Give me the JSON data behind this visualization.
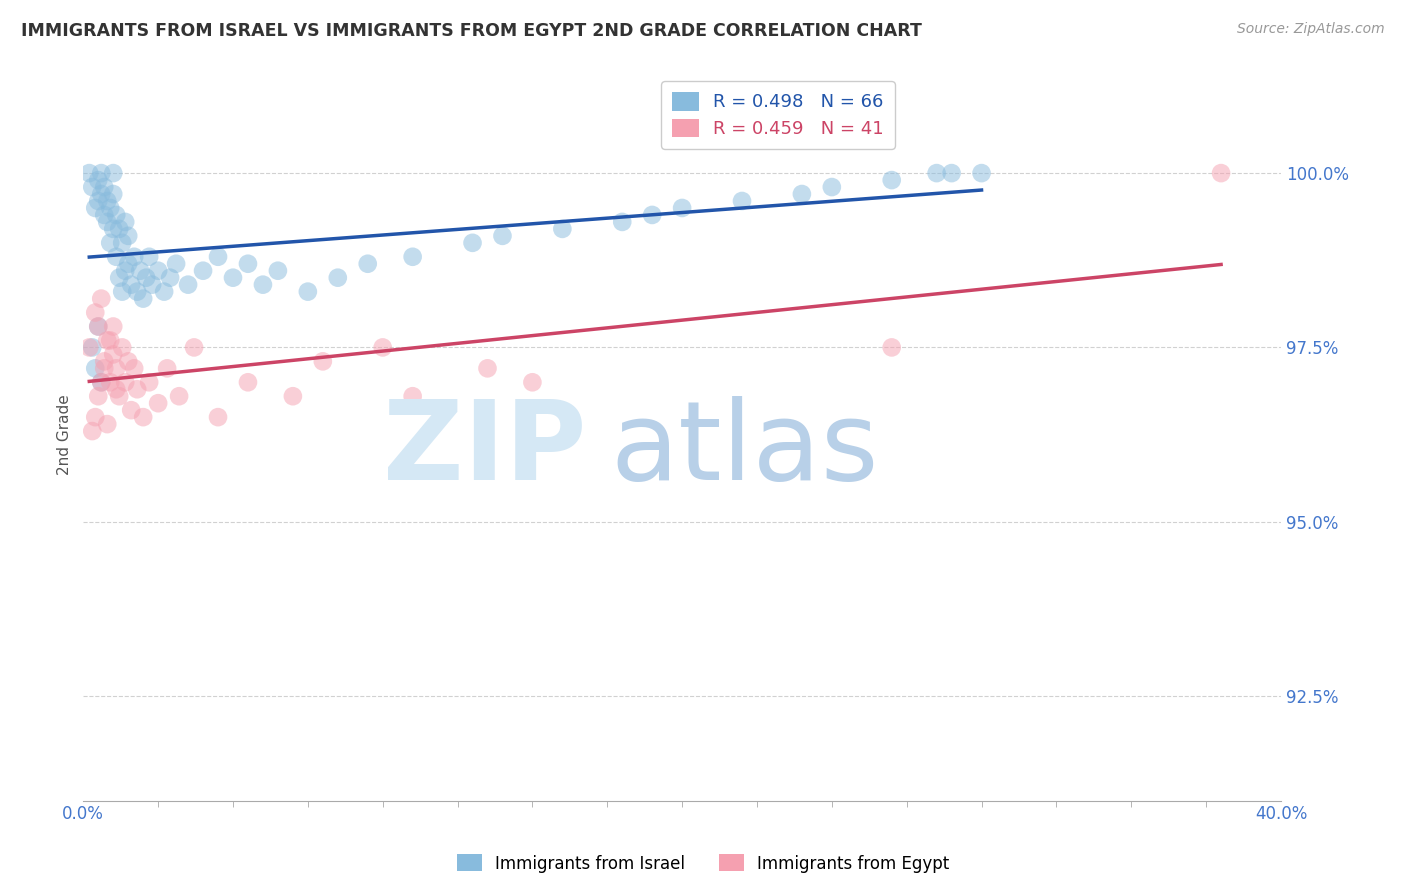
{
  "title": "IMMIGRANTS FROM ISRAEL VS IMMIGRANTS FROM EGYPT 2ND GRADE CORRELATION CHART",
  "source": "Source: ZipAtlas.com",
  "ylabel": "2nd Grade",
  "yticks": [
    92.5,
    95.0,
    97.5,
    100.0
  ],
  "ytick_labels": [
    "92.5%",
    "95.0%",
    "97.5%",
    "100.0%"
  ],
  "xlim": [
    0.0,
    40.0
  ],
  "ylim": [
    91.0,
    101.5
  ],
  "israel_color": "#88bbdd",
  "egypt_color": "#f5a0b0",
  "israel_line_color": "#2255aa",
  "egypt_line_color": "#cc4466",
  "israel_R": 0.498,
  "israel_N": 66,
  "egypt_R": 0.459,
  "egypt_N": 41,
  "watermark_zip_color": "#d5e8f5",
  "watermark_atlas_color": "#b8d0e8",
  "grid_color": "#cccccc",
  "tick_color": "#4477cc",
  "israel_x": [
    0.2,
    0.3,
    0.4,
    0.5,
    0.5,
    0.6,
    0.6,
    0.7,
    0.7,
    0.8,
    0.8,
    0.9,
    0.9,
    1.0,
    1.0,
    1.0,
    1.1,
    1.1,
    1.2,
    1.2,
    1.3,
    1.3,
    1.4,
    1.4,
    1.5,
    1.5,
    1.6,
    1.7,
    1.8,
    1.9,
    2.0,
    2.1,
    2.2,
    2.3,
    2.5,
    2.7,
    2.9,
    3.1,
    3.5,
    4.0,
    4.5,
    5.0,
    5.5,
    6.0,
    6.5,
    7.5,
    8.5,
    9.5,
    11.0,
    13.0,
    14.0,
    16.0,
    18.0,
    19.0,
    20.0,
    22.0,
    24.0,
    25.0,
    27.0,
    28.5,
    29.0,
    30.0,
    0.3,
    0.4,
    0.5,
    0.6
  ],
  "israel_y": [
    100.0,
    99.8,
    99.5,
    99.6,
    99.9,
    99.7,
    100.0,
    99.4,
    99.8,
    99.3,
    99.6,
    99.0,
    99.5,
    99.2,
    99.7,
    100.0,
    98.8,
    99.4,
    98.5,
    99.2,
    98.3,
    99.0,
    98.6,
    99.3,
    98.7,
    99.1,
    98.4,
    98.8,
    98.3,
    98.6,
    98.2,
    98.5,
    98.8,
    98.4,
    98.6,
    98.3,
    98.5,
    98.7,
    98.4,
    98.6,
    98.8,
    98.5,
    98.7,
    98.4,
    98.6,
    98.3,
    98.5,
    98.7,
    98.8,
    99.0,
    99.1,
    99.2,
    99.3,
    99.4,
    99.5,
    99.6,
    99.7,
    99.8,
    99.9,
    100.0,
    100.0,
    100.0,
    97.5,
    97.2,
    97.8,
    97.0
  ],
  "egypt_x": [
    0.2,
    0.4,
    0.5,
    0.6,
    0.7,
    0.8,
    0.9,
    1.0,
    1.0,
    1.1,
    1.2,
    1.3,
    1.4,
    1.5,
    1.6,
    1.7,
    1.8,
    2.0,
    2.2,
    2.5,
    2.8,
    3.2,
    3.7,
    4.5,
    5.5,
    7.0,
    8.0,
    10.0,
    11.0,
    13.5,
    15.0,
    0.3,
    0.4,
    0.5,
    0.6,
    0.7,
    0.8,
    0.9,
    1.1,
    38.0,
    27.0
  ],
  "egypt_y": [
    97.5,
    98.0,
    97.8,
    98.2,
    97.3,
    97.6,
    97.0,
    97.4,
    97.8,
    97.2,
    96.8,
    97.5,
    97.0,
    97.3,
    96.6,
    97.2,
    96.9,
    96.5,
    97.0,
    96.7,
    97.2,
    96.8,
    97.5,
    96.5,
    97.0,
    96.8,
    97.3,
    97.5,
    96.8,
    97.2,
    97.0,
    96.3,
    96.5,
    96.8,
    97.0,
    97.2,
    96.4,
    97.6,
    96.9,
    100.0,
    97.5
  ]
}
